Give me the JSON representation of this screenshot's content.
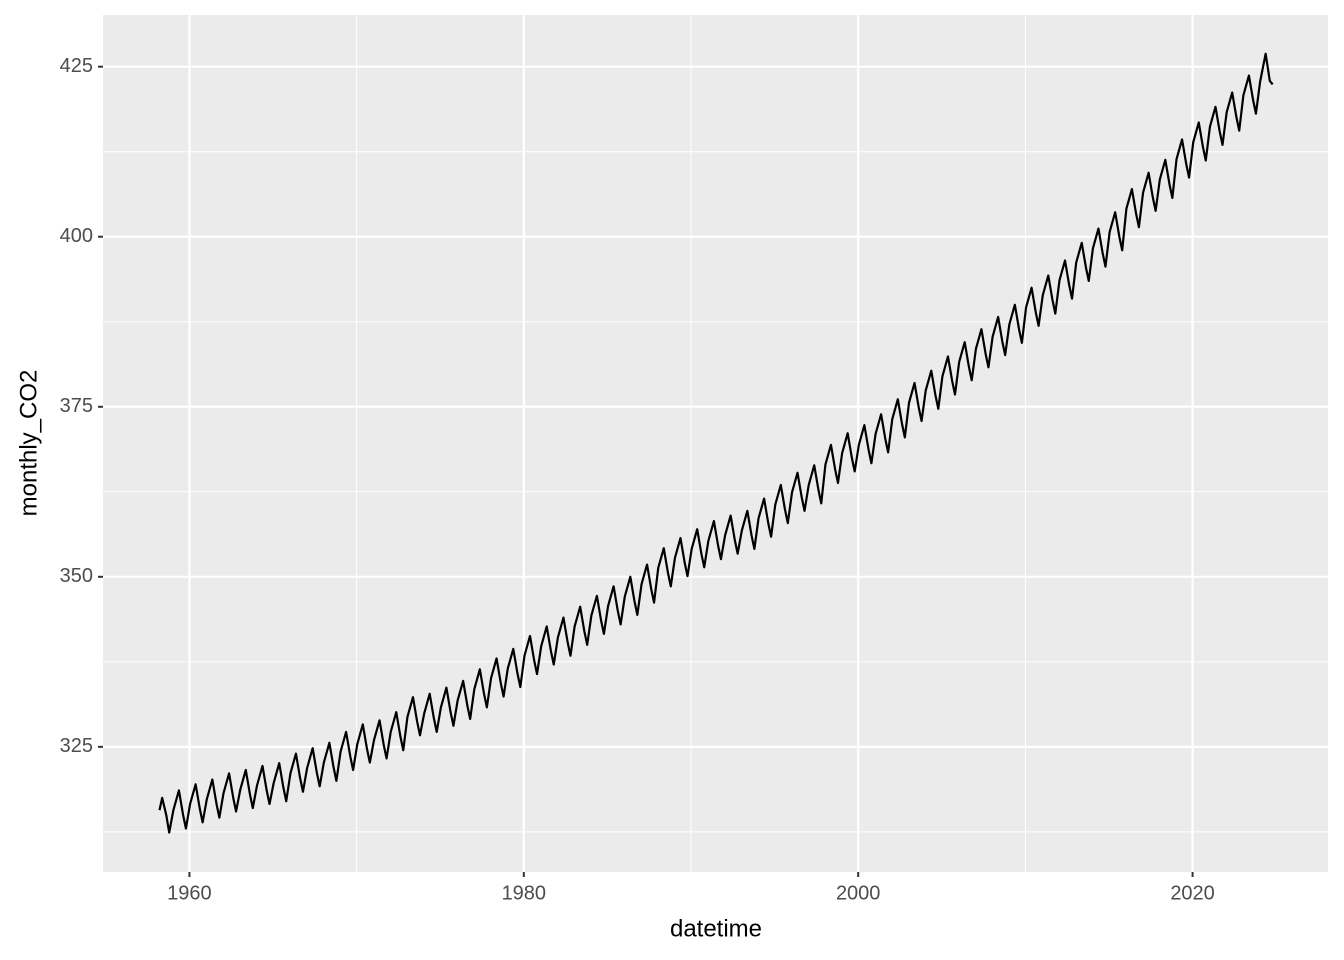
{
  "chart_data": {
    "type": "line",
    "x_label": "datetime",
    "y_label": "monthly_CO2",
    "xlim": [
      1954.83,
      2028.1
    ],
    "ylim": [
      306.6,
      432.6
    ],
    "xticks": [
      1960,
      1980,
      2000,
      2020
    ],
    "yticks": [
      325,
      350,
      375,
      400,
      425
    ],
    "x_minor_grid": [
      1970,
      1990,
      2010
    ],
    "y_minor_grid": [
      312.5,
      337.5,
      362.5,
      387.5,
      412.5
    ],
    "grid": true,
    "background": "#EBEBEB",
    "color": "#000000",
    "x": [
      1958.21,
      1958.37,
      1958.62,
      1958.79,
      1959.04,
      1959.37,
      1959.62,
      1959.79,
      1960.04,
      1960.37,
      1960.62,
      1960.79,
      1961.04,
      1961.37,
      1961.62,
      1961.79,
      1962.04,
      1962.37,
      1962.62,
      1962.79,
      1963.04,
      1963.37,
      1963.62,
      1963.79,
      1964.04,
      1964.37,
      1964.62,
      1964.79,
      1965.04,
      1965.37,
      1965.62,
      1965.79,
      1966.04,
      1966.37,
      1966.62,
      1966.79,
      1967.04,
      1967.37,
      1967.62,
      1967.79,
      1968.04,
      1968.37,
      1968.62,
      1968.79,
      1969.04,
      1969.37,
      1969.62,
      1969.79,
      1970.04,
      1970.37,
      1970.62,
      1970.79,
      1971.04,
      1971.37,
      1971.62,
      1971.79,
      1972.04,
      1972.37,
      1972.62,
      1972.79,
      1973.04,
      1973.37,
      1973.62,
      1973.79,
      1974.04,
      1974.37,
      1974.62,
      1974.79,
      1975.04,
      1975.37,
      1975.62,
      1975.79,
      1976.04,
      1976.37,
      1976.62,
      1976.79,
      1977.04,
      1977.37,
      1977.62,
      1977.79,
      1978.04,
      1978.37,
      1978.62,
      1978.79,
      1979.04,
      1979.37,
      1979.62,
      1979.79,
      1980.04,
      1980.37,
      1980.62,
      1980.79,
      1981.04,
      1981.37,
      1981.62,
      1981.79,
      1982.04,
      1982.37,
      1982.62,
      1982.79,
      1983.04,
      1983.37,
      1983.62,
      1983.79,
      1984.04,
      1984.37,
      1984.62,
      1984.79,
      1985.04,
      1985.37,
      1985.62,
      1985.79,
      1986.04,
      1986.37,
      1986.62,
      1986.79,
      1987.04,
      1987.37,
      1987.62,
      1987.79,
      1988.04,
      1988.37,
      1988.62,
      1988.79,
      1989.04,
      1989.37,
      1989.62,
      1989.79,
      1990.04,
      1990.37,
      1990.62,
      1990.79,
      1991.04,
      1991.37,
      1991.62,
      1991.79,
      1992.04,
      1992.37,
      1992.62,
      1992.79,
      1993.04,
      1993.37,
      1993.62,
      1993.79,
      1994.04,
      1994.37,
      1994.62,
      1994.79,
      1995.04,
      1995.37,
      1995.62,
      1995.79,
      1996.04,
      1996.37,
      1996.62,
      1996.79,
      1997.04,
      1997.37,
      1997.62,
      1997.79,
      1998.04,
      1998.37,
      1998.62,
      1998.79,
      1999.04,
      1999.37,
      1999.62,
      1999.79,
      2000.04,
      2000.37,
      2000.62,
      2000.79,
      2001.04,
      2001.37,
      2001.62,
      2001.79,
      2002.04,
      2002.37,
      2002.62,
      2002.79,
      2003.04,
      2003.37,
      2003.62,
      2003.79,
      2004.04,
      2004.37,
      2004.62,
      2004.79,
      2005.04,
      2005.37,
      2005.62,
      2005.79,
      2006.04,
      2006.37,
      2006.62,
      2006.79,
      2007.04,
      2007.37,
      2007.62,
      2007.79,
      2008.04,
      2008.37,
      2008.62,
      2008.79,
      2009.04,
      2009.37,
      2009.62,
      2009.79,
      2010.04,
      2010.37,
      2010.62,
      2010.79,
      2011.04,
      2011.37,
      2011.62,
      2011.79,
      2012.04,
      2012.37,
      2012.62,
      2012.79,
      2013.04,
      2013.37,
      2013.62,
      2013.79,
      2014.04,
      2014.37,
      2014.62,
      2014.79,
      2015.04,
      2015.37,
      2015.62,
      2015.79,
      2016.04,
      2016.37,
      2016.62,
      2016.79,
      2017.04,
      2017.37,
      2017.62,
      2017.79,
      2018.04,
      2018.37,
      2018.62,
      2018.79,
      2019.04,
      2019.37,
      2019.62,
      2019.79,
      2020.04,
      2020.37,
      2020.62,
      2020.79,
      2021.04,
      2021.37,
      2021.62,
      2021.79,
      2022.04,
      2022.37,
      2022.62,
      2022.79,
      2023.04,
      2023.37,
      2023.62,
      2023.79,
      2024.04,
      2024.37,
      2024.62,
      2024.79
    ],
    "values": [
      315.7,
      317.5,
      314.9,
      312.4,
      315.7,
      318.6,
      315.0,
      313.0,
      316.6,
      319.5,
      315.9,
      313.9,
      317.3,
      320.2,
      316.6,
      314.6,
      318.2,
      321.1,
      317.5,
      315.5,
      318.7,
      321.6,
      318.0,
      316.0,
      319.3,
      322.2,
      318.6,
      316.6,
      319.7,
      322.6,
      319.0,
      317.0,
      321.1,
      324.0,
      320.4,
      318.4,
      321.9,
      324.8,
      321.2,
      319.2,
      322.7,
      325.6,
      322.0,
      320.0,
      324.3,
      327.2,
      323.6,
      321.6,
      325.4,
      328.3,
      324.7,
      322.7,
      326.0,
      328.9,
      325.3,
      323.3,
      327.2,
      330.1,
      326.5,
      324.5,
      329.4,
      332.3,
      328.7,
      326.7,
      329.9,
      332.8,
      329.2,
      327.2,
      330.8,
      333.7,
      330.1,
      328.1,
      331.8,
      334.7,
      331.1,
      329.1,
      333.5,
      336.4,
      332.8,
      330.8,
      335.1,
      338.0,
      334.4,
      332.4,
      336.5,
      339.4,
      335.8,
      333.8,
      338.4,
      341.3,
      337.7,
      335.7,
      339.8,
      342.7,
      339.1,
      337.1,
      341.1,
      344.0,
      340.4,
      338.4,
      342.7,
      345.6,
      342.0,
      340.0,
      344.3,
      347.2,
      343.6,
      341.6,
      345.7,
      348.6,
      345.0,
      343.0,
      347.1,
      350.0,
      346.4,
      344.4,
      348.9,
      351.8,
      348.2,
      346.2,
      351.3,
      354.2,
      350.6,
      348.6,
      352.8,
      355.7,
      352.1,
      350.1,
      354.1,
      357.0,
      353.4,
      351.4,
      355.3,
      358.2,
      354.6,
      352.6,
      356.1,
      359.0,
      355.4,
      353.4,
      356.8,
      359.7,
      356.1,
      354.1,
      358.6,
      361.5,
      357.9,
      355.9,
      360.6,
      363.5,
      359.9,
      357.9,
      362.4,
      365.3,
      361.7,
      359.7,
      363.5,
      366.4,
      362.8,
      360.8,
      366.5,
      369.4,
      365.8,
      363.8,
      368.2,
      371.1,
      367.5,
      365.5,
      369.4,
      372.3,
      368.7,
      366.7,
      371.0,
      373.9,
      370.3,
      368.3,
      373.2,
      376.1,
      372.5,
      370.5,
      375.6,
      378.5,
      374.9,
      372.9,
      377.4,
      380.3,
      376.7,
      374.7,
      379.5,
      382.4,
      378.8,
      376.8,
      381.6,
      384.5,
      380.9,
      378.9,
      383.5,
      386.4,
      382.8,
      380.8,
      385.3,
      388.2,
      384.6,
      382.6,
      387.1,
      390.0,
      386.4,
      384.4,
      389.6,
      392.5,
      388.9,
      386.9,
      391.4,
      394.3,
      390.7,
      388.7,
      393.6,
      396.5,
      392.9,
      390.9,
      396.2,
      399.1,
      395.5,
      393.5,
      398.3,
      401.2,
      397.6,
      395.6,
      400.7,
      403.6,
      400.0,
      398.0,
      404.1,
      407.0,
      403.4,
      401.4,
      406.5,
      409.4,
      405.8,
      403.8,
      408.4,
      411.3,
      407.7,
      405.7,
      411.4,
      414.3,
      410.7,
      408.7,
      413.9,
      416.8,
      413.2,
      411.2,
      416.2,
      419.1,
      415.5,
      413.5,
      418.3,
      421.2,
      417.6,
      415.6,
      420.8,
      423.7,
      420.1,
      418.1,
      422.8,
      426.9,
      422.9,
      422.4
    ]
  }
}
